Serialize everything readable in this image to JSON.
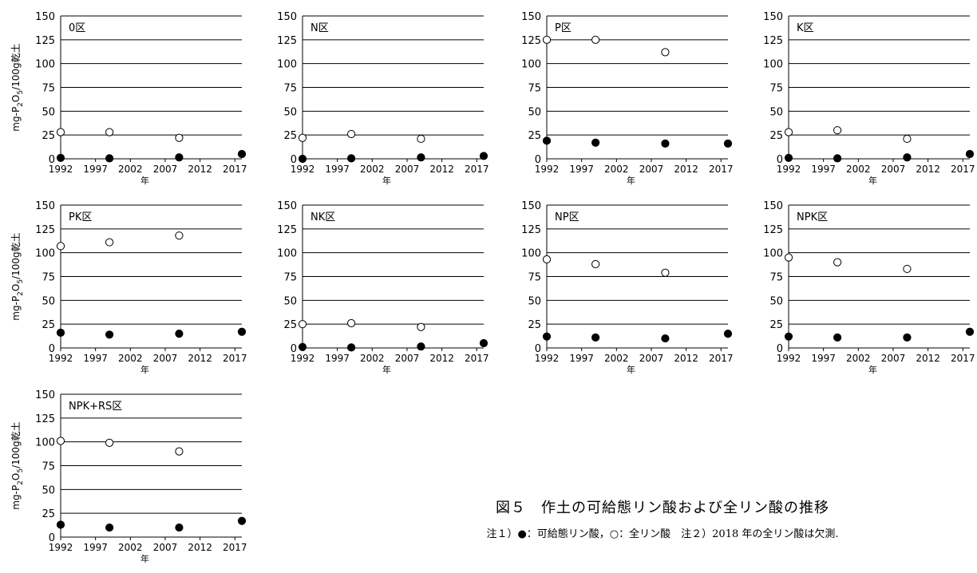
{
  "figure": {
    "caption_title": "図５　作土の可給態リン酸および全リン酸の推移",
    "caption_note": "注１）●：可給態リン酸，○：全リン酸　注２）2018 年の全リン酸は欠測."
  },
  "axis_text": {
    "xlabel": "年",
    "ylabel_prefix": "mg-P",
    "ylabel_sub1": "2",
    "ylabel_mid": "O",
    "ylabel_sub2": "5",
    "ylabel_suffix": "/100g乾土"
  },
  "colors": {
    "available": "#000000",
    "total_fill": "#ffffff",
    "total_stroke": "#000000",
    "grid": "#000000"
  },
  "chart_data": [
    {
      "type": "scatter",
      "title": "0区",
      "x_ticks": [
        1992,
        1997,
        2002,
        2007,
        2012,
        2017
      ],
      "y_ticks": [
        0,
        25,
        50,
        75,
        100,
        125,
        150
      ],
      "xlim": [
        1992,
        2018
      ],
      "ylim": [
        0,
        150
      ],
      "xlabel": "年",
      "ylabel": "mg-P2O5/100g乾土",
      "grid": "horizontal",
      "series": [
        {
          "marker": "filled",
          "x": [
            1992,
            1999,
            2009,
            2018
          ],
          "y": [
            1,
            0.5,
            1.5,
            5
          ]
        },
        {
          "marker": "open",
          "x": [
            1992,
            1999,
            2009
          ],
          "y": [
            28,
            28,
            22
          ]
        }
      ]
    },
    {
      "type": "scatter",
      "title": "N区",
      "x_ticks": [
        1992,
        1997,
        2002,
        2007,
        2012,
        2017
      ],
      "y_ticks": [
        0,
        25,
        50,
        75,
        100,
        125,
        150
      ],
      "xlim": [
        1992,
        2018
      ],
      "ylim": [
        0,
        150
      ],
      "xlabel": "年",
      "ylabel": "",
      "grid": "horizontal",
      "series": [
        {
          "marker": "filled",
          "x": [
            1992,
            1999,
            2009,
            2018
          ],
          "y": [
            0,
            0.5,
            1.5,
            3
          ]
        },
        {
          "marker": "open",
          "x": [
            1992,
            1999,
            2009
          ],
          "y": [
            22,
            26,
            21
          ]
        }
      ]
    },
    {
      "type": "scatter",
      "title": "P区",
      "x_ticks": [
        1992,
        1997,
        2002,
        2007,
        2012,
        2017
      ],
      "y_ticks": [
        0,
        25,
        50,
        75,
        100,
        125,
        150
      ],
      "xlim": [
        1992,
        2018
      ],
      "ylim": [
        0,
        150
      ],
      "xlabel": "年",
      "ylabel": "",
      "grid": "horizontal",
      "series": [
        {
          "marker": "filled",
          "x": [
            1992,
            1999,
            2009,
            2018
          ],
          "y": [
            19,
            17,
            16,
            16
          ]
        },
        {
          "marker": "open",
          "x": [
            1992,
            1999,
            2009
          ],
          "y": [
            125,
            125,
            112
          ]
        }
      ]
    },
    {
      "type": "scatter",
      "title": "K区",
      "x_ticks": [
        1992,
        1997,
        2002,
        2007,
        2012,
        2017
      ],
      "y_ticks": [
        0,
        25,
        50,
        75,
        100,
        125,
        150
      ],
      "xlim": [
        1992,
        2018
      ],
      "ylim": [
        0,
        150
      ],
      "xlabel": "年",
      "ylabel": "",
      "grid": "horizontal",
      "series": [
        {
          "marker": "filled",
          "x": [
            1992,
            1999,
            2009,
            2018
          ],
          "y": [
            1,
            0.5,
            1.5,
            5
          ]
        },
        {
          "marker": "open",
          "x": [
            1992,
            1999,
            2009
          ],
          "y": [
            28,
            30,
            21
          ]
        }
      ]
    },
    {
      "type": "scatter",
      "title": "PK区",
      "x_ticks": [
        1992,
        1997,
        2002,
        2007,
        2012,
        2017
      ],
      "y_ticks": [
        0,
        25,
        50,
        75,
        100,
        125,
        150
      ],
      "xlim": [
        1992,
        2018
      ],
      "ylim": [
        0,
        150
      ],
      "xlabel": "年",
      "ylabel": "mg-P2O5/100g乾土",
      "grid": "horizontal",
      "series": [
        {
          "marker": "filled",
          "x": [
            1992,
            1999,
            2009,
            2018
          ],
          "y": [
            16,
            14,
            15,
            17
          ]
        },
        {
          "marker": "open",
          "x": [
            1992,
            1999,
            2009
          ],
          "y": [
            107,
            111,
            118
          ]
        }
      ]
    },
    {
      "type": "scatter",
      "title": "NK区",
      "x_ticks": [
        1992,
        1997,
        2002,
        2007,
        2012,
        2017
      ],
      "y_ticks": [
        0,
        25,
        50,
        75,
        100,
        125,
        150
      ],
      "xlim": [
        1992,
        2018
      ],
      "ylim": [
        0,
        150
      ],
      "xlabel": "年",
      "ylabel": "",
      "grid": "horizontal",
      "series": [
        {
          "marker": "filled",
          "x": [
            1992,
            1999,
            2009,
            2018
          ],
          "y": [
            1,
            0.5,
            1.5,
            5
          ]
        },
        {
          "marker": "open",
          "x": [
            1992,
            1999,
            2009
          ],
          "y": [
            25,
            26,
            22
          ]
        }
      ]
    },
    {
      "type": "scatter",
      "title": "NP区",
      "x_ticks": [
        1992,
        1997,
        2002,
        2007,
        2012,
        2017
      ],
      "y_ticks": [
        0,
        25,
        50,
        75,
        100,
        125,
        150
      ],
      "xlim": [
        1992,
        2018
      ],
      "ylim": [
        0,
        150
      ],
      "xlabel": "年",
      "ylabel": "",
      "grid": "horizontal",
      "series": [
        {
          "marker": "filled",
          "x": [
            1992,
            1999,
            2009,
            2018
          ],
          "y": [
            12,
            11,
            10,
            15
          ]
        },
        {
          "marker": "open",
          "x": [
            1992,
            1999,
            2009
          ],
          "y": [
            93,
            88,
            79
          ]
        }
      ]
    },
    {
      "type": "scatter",
      "title": "NPK区",
      "x_ticks": [
        1992,
        1997,
        2002,
        2007,
        2012,
        2017
      ],
      "y_ticks": [
        0,
        25,
        50,
        75,
        100,
        125,
        150
      ],
      "xlim": [
        1992,
        2018
      ],
      "ylim": [
        0,
        150
      ],
      "xlabel": "年",
      "ylabel": "",
      "grid": "horizontal",
      "series": [
        {
          "marker": "filled",
          "x": [
            1992,
            1999,
            2009,
            2018
          ],
          "y": [
            12,
            11,
            11,
            17
          ]
        },
        {
          "marker": "open",
          "x": [
            1992,
            1999,
            2009
          ],
          "y": [
            95,
            90,
            83
          ]
        }
      ]
    },
    {
      "type": "scatter",
      "title": "NPK+RS区",
      "x_ticks": [
        1992,
        1997,
        2002,
        2007,
        2012,
        2017
      ],
      "y_ticks": [
        0,
        25,
        50,
        75,
        100,
        125,
        150
      ],
      "xlim": [
        1992,
        2018
      ],
      "ylim": [
        0,
        150
      ],
      "xlabel": "年",
      "ylabel": "mg-P2O5/100g乾土",
      "grid": "horizontal",
      "series": [
        {
          "marker": "filled",
          "x": [
            1992,
            1999,
            2009,
            2018
          ],
          "y": [
            13,
            10,
            10,
            17
          ]
        },
        {
          "marker": "open",
          "x": [
            1992,
            1999,
            2009
          ],
          "y": [
            101,
            99,
            90
          ]
        }
      ]
    }
  ]
}
